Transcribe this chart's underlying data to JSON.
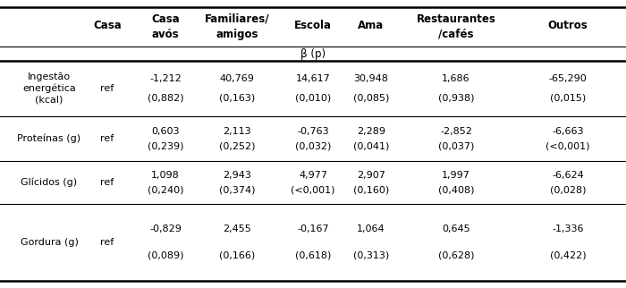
{
  "beta_label": "β (p)",
  "col_headers": [
    [
      "Casa",
      "Casa\navós",
      "Familiares/\namigos",
      "Escola",
      "Ama",
      "Restaurantes\n/cafés",
      "Outros"
    ]
  ],
  "row_labels": [
    "Ingestão\nenergética\n(kcal)",
    "Proteínas (g)",
    "Glícidos (g)",
    "Gordura (g)"
  ],
  "ref_labels": [
    "ref",
    "ref",
    "ref",
    "ref"
  ],
  "data": [
    [
      "-1,212",
      "40,769",
      "14,617",
      "30,948",
      "1,686",
      "-65,290"
    ],
    [
      "(0,882)",
      "(0,163)",
      "(0,010)",
      "(0,085)",
      "(0,938)",
      "(0,015)"
    ],
    [
      "0,603",
      "2,113",
      "-0,763",
      "2,289",
      "-2,852",
      "-6,663"
    ],
    [
      "(0,239)",
      "(0,252)",
      "(0,032)",
      "(0,041)",
      "(0,037)",
      "(<0,001)"
    ],
    [
      "1,098",
      "2,943",
      "4,977",
      "2,907",
      "1,997",
      "-6,624"
    ],
    [
      "(0,240)",
      "(0,374)",
      "(<0,001)",
      "(0,160)",
      "(0,408)",
      "(0,028)"
    ],
    [
      "-0,829",
      "2,455",
      "-0,167",
      "1,064",
      "0,645",
      "-1,336"
    ],
    [
      "(0,089)",
      "(0,166)",
      "(0,618)",
      "(0,313)",
      "(0,628)",
      "(0,422)"
    ]
  ],
  "bg_color": "#ffffff",
  "text_color": "#000000",
  "font_size": 8.0,
  "header_font_size": 8.5,
  "bold_headers": true
}
